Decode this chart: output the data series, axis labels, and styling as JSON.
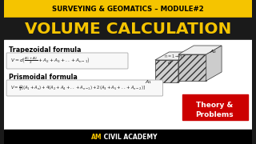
{
  "top_bar_color": "#F5C400",
  "top_text": "SURVEYING & GEOMATICS – MODULE#2",
  "top_text_color": "#000000",
  "main_title": "VOLUME CALCULATION",
  "main_title_color": "#F5C400",
  "main_bg_color": "#1a1a1a",
  "white_section_color": "#ffffff",
  "formula_section_color": "#f0f0f0",
  "trap_label": "Trapezoidal formula",
  "trap_formula": "$V = d\\left(\\frac{A_1+A_2}{2} + A_2 + A_3 +..+A_{n-1}\\right)$",
  "prism_label": "Prismoidal formula",
  "prism_formula": "$V = \\frac{d}{3}\\left[(A_1+A_n) + 4(A_2+A_4+..+A_{n-1}) + 2(A_3+A_5+..+A_{n-2})\\right]$",
  "theory_bg": "#cc0000",
  "theory_text1": "Theory &",
  "theory_text2": "Problems",
  "bottom_text": "AM CIVIL ACADEMY",
  "bottom_am_color": "#F5C400",
  "bottom_bar_color": "#000000"
}
